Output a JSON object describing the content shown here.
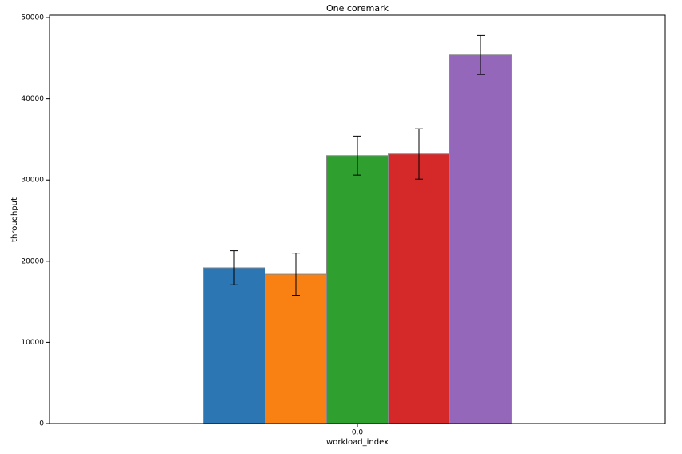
{
  "chart_data": {
    "type": "bar",
    "title": "One coremark",
    "x_label": "workload_index",
    "y_label": "throughput",
    "categories": [
      "0.0"
    ],
    "series": [
      {
        "color": "#2c76b4",
        "values": [
          19200
        ],
        "errors": [
          2100
        ]
      },
      {
        "color": "#f98012",
        "values": [
          18400
        ],
        "errors": [
          2600
        ]
      },
      {
        "color": "#2fa02f",
        "values": [
          33000
        ],
        "errors": [
          2400
        ]
      },
      {
        "color": "#d52828",
        "values": [
          33200
        ],
        "errors": [
          3100
        ]
      },
      {
        "color": "#9467bb",
        "values": [
          45400
        ],
        "errors": [
          2400
        ]
      }
    ],
    "ylim": [
      0,
      50300
    ],
    "yticks": [
      0,
      10000,
      20000,
      30000,
      40000,
      50000
    ],
    "grid": false
  }
}
